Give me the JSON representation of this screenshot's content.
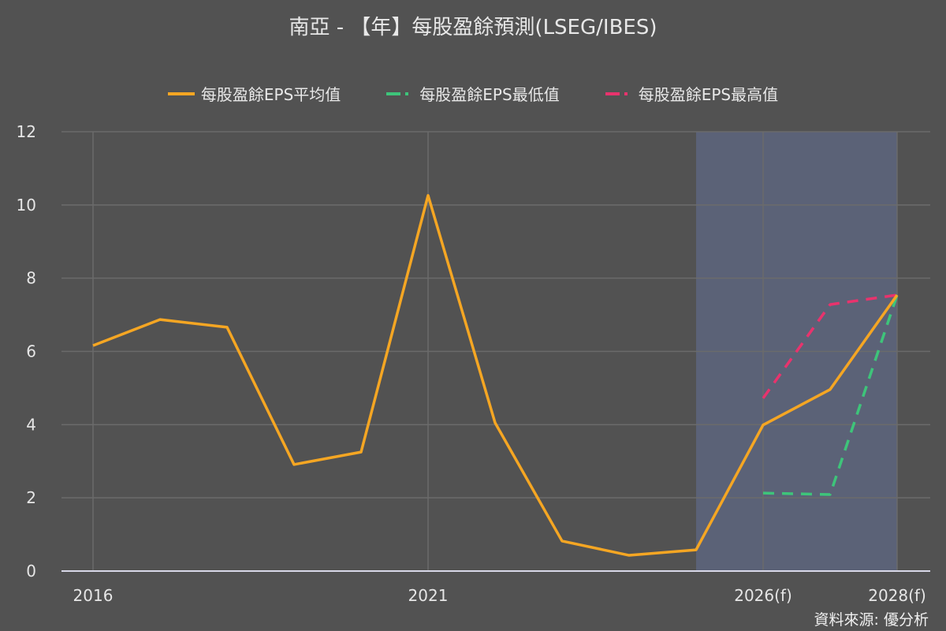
{
  "title": "南亞 - 【年】每股盈餘預測(LSEG/IBES)",
  "source": "資料來源: 優分析",
  "legend": [
    {
      "label": "每股盈餘EPS平均值",
      "color": "#f5a623",
      "style": "solid"
    },
    {
      "label": "每股盈餘EPS最低值",
      "color": "#3ec47a",
      "style": "dashed"
    },
    {
      "label": "每股盈餘EPS最高值",
      "color": "#e8336d",
      "style": "dashed"
    }
  ],
  "colors": {
    "background": "#525252",
    "forecast_band": "#5b6277",
    "grid": "#6b6b6b",
    "axis": "#d8d8e8"
  },
  "chart_data": {
    "type": "line",
    "title": "南亞 - 【年】每股盈餘預測(LSEG/IBES)",
    "xlabel": "",
    "ylabel": "",
    "ylim": [
      0,
      12
    ],
    "yticks": [
      0,
      2,
      4,
      6,
      8,
      10,
      12
    ],
    "x": [
      2016,
      2017,
      2018,
      2019,
      2020,
      2021,
      2022,
      2023,
      2024,
      2025,
      2026,
      2027,
      2028
    ],
    "xtick_labels": [
      {
        "x": 2016,
        "label": "2016"
      },
      {
        "x": 2021,
        "label": "2021"
      },
      {
        "x": 2026,
        "label": "2026(f)"
      },
      {
        "x": 2028,
        "label": "2028(f)"
      }
    ],
    "forecast_shaded_range": [
      2025,
      2028
    ],
    "grid": true,
    "legend_position": "top",
    "series": [
      {
        "name": "每股盈餘EPS平均值",
        "values": [
          6.16,
          6.87,
          6.66,
          2.91,
          3.25,
          10.26,
          4.05,
          0.82,
          0.43,
          0.58,
          3.99,
          4.96,
          7.54
        ]
      },
      {
        "name": "每股盈餘EPS最低值",
        "values": [
          null,
          null,
          null,
          null,
          null,
          null,
          null,
          null,
          null,
          null,
          2.13,
          2.09,
          7.54
        ]
      },
      {
        "name": "每股盈餘EPS最高值",
        "values": [
          null,
          null,
          null,
          null,
          null,
          null,
          null,
          null,
          null,
          null,
          4.72,
          7.28,
          7.54
        ]
      }
    ]
  }
}
